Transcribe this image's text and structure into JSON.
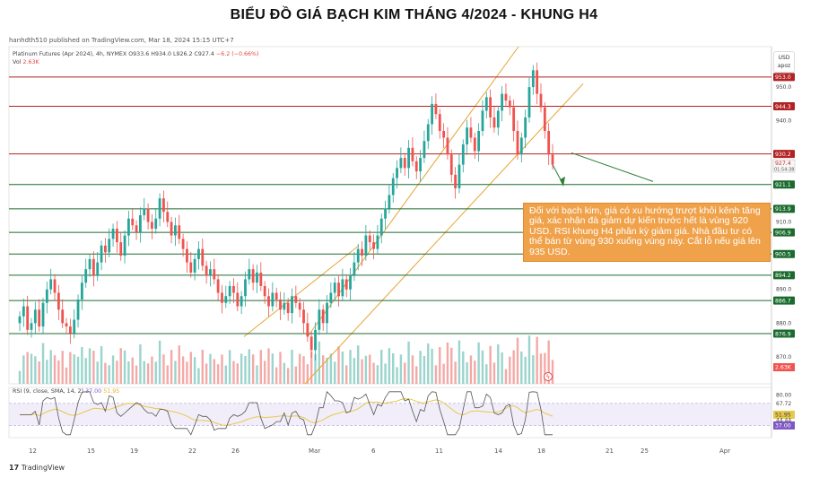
{
  "page": {
    "title": "BIỂU ĐỒ GIÁ BẠCH KIM THÁNG 4/2024 - KHUNG H4",
    "publish_line": "hanhdth510 published on TradingView.com, Mar 18, 2024 15:15 UTC+7",
    "tradingview_logo": "TradingView",
    "currency_button": [
      "USD",
      "apoz"
    ]
  },
  "legend": {
    "symbol": "Platinum Futures (Apr 2024), 4h, NYMEX",
    "ohlc": "O933.6  H934.0  L926.2  C927.4",
    "change": "−6.2 (−0.66%)",
    "volume_label": "Vol",
    "volume_value": "2.63K",
    "rsi_label": "RSI (9, close, SMA, 14, 2)",
    "rsi_value": "37.00",
    "rsi_ma": "51.95"
  },
  "annotation": {
    "text": "Đối với bạch kim, giá có xu hướng trượt khỏi kênh tăng giá, xác nhận đà giảm dự kiến trước hết là vùng 920 USD. RSI khung H4 phân kỳ giảm giá. Nhà đầu tư có thể bán từ vùng 930 xuống vùng này. Cắt lỗ nếu giá lên 935 USD.",
    "bg": "#f0a24b"
  },
  "colors": {
    "up": "#26a69a",
    "down": "#ef5350",
    "resistance": "#b22222",
    "support": "#1b6b2f",
    "channel": "#e6a532",
    "rsi": "#555555",
    "rsi_ma": "#e6c84a"
  },
  "chart_data": {
    "type": "candlestick",
    "title": "BIỂU ĐỒ GIÁ BẠCH KIM THÁNG 4/2024 - KHUNG H4",
    "ylim": [
      862,
      962
    ],
    "price_ticks": [
      950.0,
      940.0,
      910.0,
      890.0,
      880.0,
      870.0
    ],
    "x_ticks": [
      "12",
      "15",
      "19",
      "22",
      "26",
      "Mar",
      "6",
      "11",
      "14",
      "18",
      "21",
      "25",
      "Apr"
    ],
    "horizontal_levels": [
      {
        "value": 953.0,
        "label": "953.0",
        "kind": "resistance"
      },
      {
        "value": 944.3,
        "label": "944.3",
        "kind": "resistance"
      },
      {
        "value": 930.2,
        "label": "930.2",
        "kind": "resistance"
      },
      {
        "value": 921.1,
        "label": "921.1",
        "kind": "support"
      },
      {
        "value": 913.9,
        "label": "913.9",
        "kind": "support"
      },
      {
        "value": 906.9,
        "label": "906.9",
        "kind": "support"
      },
      {
        "value": 900.5,
        "label": "900.5",
        "kind": "support"
      },
      {
        "value": 894.2,
        "label": "894.2",
        "kind": "support"
      },
      {
        "value": 886.7,
        "label": "886.7",
        "kind": "support"
      },
      {
        "value": 876.9,
        "label": "876.9",
        "kind": "support"
      }
    ],
    "current_price": {
      "value": 927.4,
      "label": "927.4",
      "countdown": "01:54:38"
    },
    "volume_badge": "2.63K",
    "rsi_ticks": [
      {
        "value": 80.0,
        "label": "80.00"
      },
      {
        "value": 67.72,
        "label": "67.72"
      },
      {
        "value": 51.95,
        "label": "51.95"
      },
      {
        "value": 44.44,
        "label": "44.44"
      },
      {
        "value": 37.0,
        "label": "37.00"
      }
    ],
    "closes": [
      882,
      885,
      878,
      880,
      884,
      879,
      886,
      890,
      893,
      889,
      884,
      880,
      879,
      877,
      881,
      887,
      892,
      896,
      899,
      894,
      898,
      903,
      901,
      905,
      908,
      904,
      900,
      906,
      911,
      909,
      907,
      912,
      914,
      910,
      908,
      911,
      917,
      913,
      910,
      906,
      909,
      905,
      902,
      898,
      895,
      899,
      902,
      897,
      894,
      896,
      893,
      889,
      886,
      888,
      891,
      889,
      885,
      888,
      893,
      896,
      892,
      895,
      891,
      888,
      885,
      889,
      887,
      884,
      886,
      883,
      888,
      886,
      884,
      880,
      876,
      872,
      878,
      884,
      880,
      886,
      889,
      892,
      888,
      893,
      890,
      894,
      898,
      902,
      900,
      906,
      904,
      902,
      906,
      911,
      914,
      918,
      923,
      926,
      929,
      926,
      932,
      928,
      925,
      929,
      934,
      939,
      945,
      942,
      937,
      935,
      930,
      924,
      920,
      927,
      933,
      938,
      935,
      931,
      937,
      943,
      947,
      941,
      938,
      943,
      948,
      946,
      944,
      937,
      930,
      935,
      941,
      950,
      955,
      948,
      944,
      937,
      930,
      927
    ]
  }
}
